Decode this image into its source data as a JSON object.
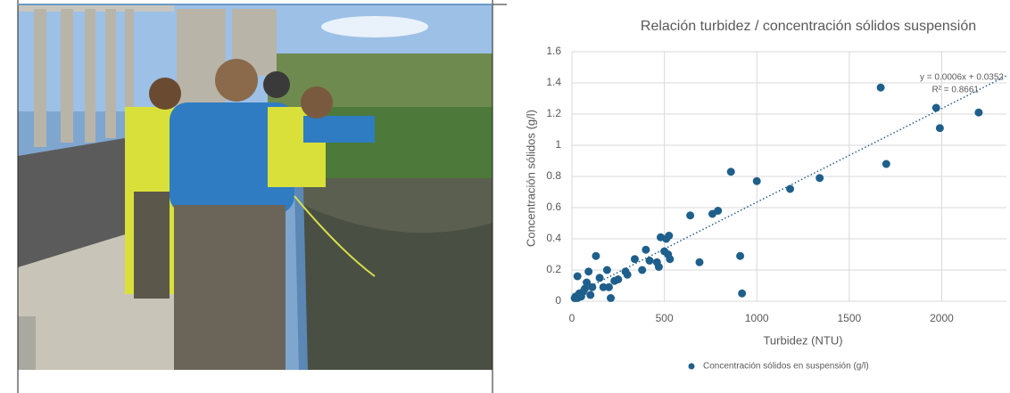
{
  "chart_data": {
    "type": "scatter",
    "title": "Relación turbidez / concentración sólidos suspensión",
    "x_label": "Turbidez (NTU)",
    "y_label": "Concentración sólidos (g/l)",
    "x": [
      15,
      20,
      30,
      40,
      50,
      60,
      70,
      80,
      100,
      110,
      90,
      30,
      130,
      150,
      170,
      190,
      200,
      210,
      230,
      250,
      290,
      300,
      340,
      380,
      400,
      420,
      460,
      470,
      480,
      500,
      510,
      520,
      530,
      525,
      640,
      690,
      760,
      790,
      860,
      910,
      920,
      1000,
      1180,
      1340,
      1670,
      1700,
      1970,
      1990,
      2200
    ],
    "series": [
      {
        "name": "Concentración sólidos en suspensión (g/l)",
        "color": "#1f5f8b",
        "values": [
          0.02,
          0.03,
          0.02,
          0.05,
          0.03,
          0.06,
          0.08,
          0.12,
          0.04,
          0.09,
          0.19,
          0.16,
          0.29,
          0.15,
          0.09,
          0.2,
          0.09,
          0.02,
          0.13,
          0.14,
          0.19,
          0.17,
          0.27,
          0.2,
          0.33,
          0.26,
          0.25,
          0.22,
          0.41,
          0.32,
          0.4,
          0.3,
          0.27,
          0.42,
          0.55,
          0.25,
          0.56,
          0.58,
          0.83,
          0.29,
          0.05,
          0.77,
          0.72,
          0.79,
          1.37,
          0.88,
          1.24,
          1.11,
          1.21
        ]
      }
    ],
    "trendline": {
      "slope": 0.0006,
      "intercept": 0.0352,
      "label": "y = 0.0006x + 0.0352",
      "r2_label": "R² = 0.8661"
    },
    "xlim": [
      0,
      2350
    ],
    "ylim": [
      0,
      1.6
    ],
    "xticks": [
      0,
      500,
      1000,
      1500,
      2000
    ],
    "yticks": [
      0,
      0.2,
      0.4,
      0.6,
      0.8,
      1,
      1.2,
      1.4,
      1.6
    ],
    "grid": true
  }
}
